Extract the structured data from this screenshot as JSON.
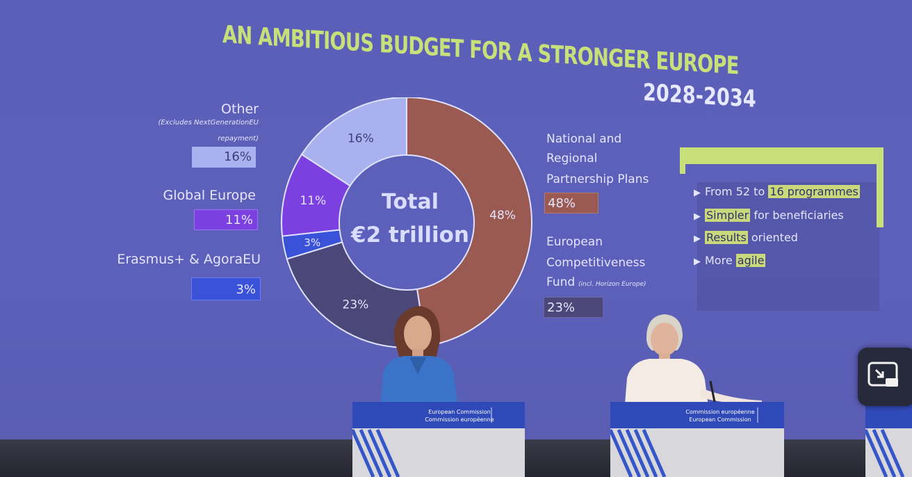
{
  "title": "AN AMBITIOUS BUDGET FOR A STRONGER EUROPE",
  "years": "2028-2034",
  "chart_data": {
    "type": "pie",
    "center_label": [
      "Total",
      "€2 trillion"
    ],
    "slices": [
      {
        "name": "National and Regional Partnership Plans",
        "value": 48,
        "label": "48%",
        "color": "#9a5a52"
      },
      {
        "name": "European Competitiveness Fund",
        "value": 23,
        "label": "23%",
        "color": "#4b4778"
      },
      {
        "name": "Erasmus+ & AgoraEU",
        "value": 3,
        "label": "3%",
        "color": "#3a52d8"
      },
      {
        "name": "Global Europe",
        "value": 11,
        "label": "11%",
        "color": "#7c3fe0"
      },
      {
        "name": "Other",
        "value": 16,
        "label": "16%",
        "color": "#a9b2ee"
      }
    ]
  },
  "legend_left": {
    "other": {
      "label": "Other",
      "note_line1": "(Excludes NextGenerationEU",
      "note_line2": "repayment)",
      "value": "16%"
    },
    "global": {
      "label": "Global Europe",
      "value": "11%"
    },
    "erasmus": {
      "label": "Erasmus+ & AgoraEU",
      "value": "3%"
    }
  },
  "legend_right": {
    "nrpp": {
      "line1": "National and",
      "line2": "Regional",
      "line3": "Partnership Plans",
      "value": "48%"
    },
    "ecf": {
      "line1": "European",
      "line2": "Competitiveness",
      "line3": "Fund",
      "note": "(incl. Horizon Europe)",
      "value": "23%"
    }
  },
  "callout": {
    "b1_pre": "From 52 to",
    "b1_hl": "16 programmes",
    "b2_hl": "Simpler",
    "b2_post": "for beneficiaries",
    "b3_hl": "Results",
    "b3_post": "oriented",
    "b4_pre": "More",
    "b4_hl": "agile"
  },
  "podiums": {
    "left_line1": "European Commission",
    "left_line2": "Commission européenne",
    "right_line1": "Commission européenne",
    "right_line2": "European Commission"
  },
  "colors": {
    "accent": "#c8e07a",
    "screen": "#5b5fb8",
    "podium_blue": "#2f49b8"
  },
  "pip_icon": "picture-in-picture-exit-icon"
}
